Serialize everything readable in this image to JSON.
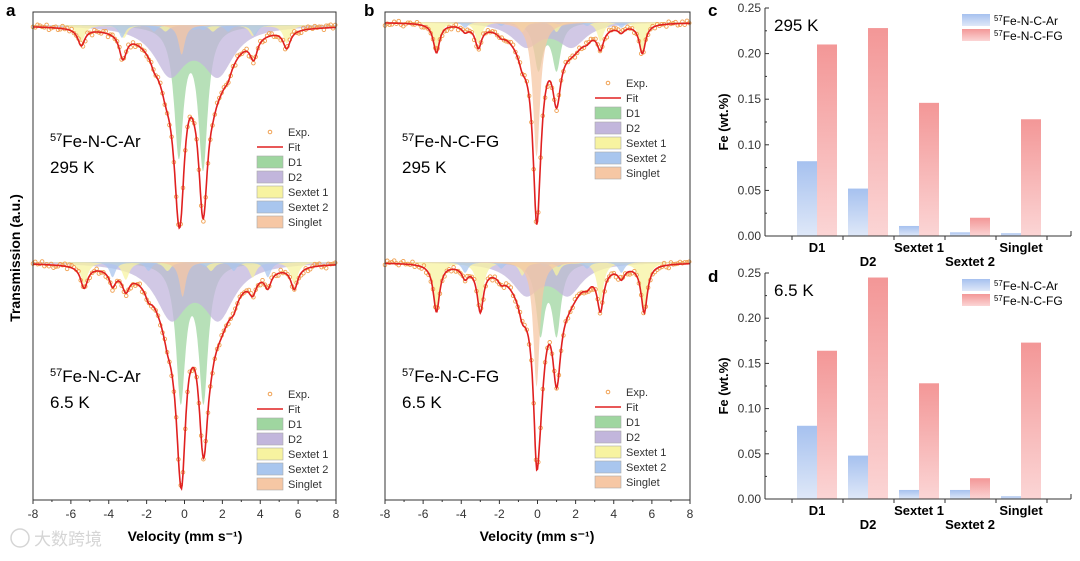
{
  "panel_letters": {
    "a": "a",
    "b": "b",
    "c": "c",
    "d": "d"
  },
  "watermark": "大数跨境",
  "colors": {
    "fit": "#e02020",
    "exp": "#f0a050",
    "D1": "#9fd6a0",
    "D2": "#c2b6dc",
    "Sextet 1": "#f7f3a0",
    "Sextet 2": "#a9c6ee",
    "Singlet": "#f6c7a4",
    "ar_top": "#a6c1ef",
    "ar_bottom": "#dfe8f8",
    "fg_top": "#f39797",
    "fg_bottom": "#fbd5d5"
  },
  "chart_data": [
    {
      "type": "line",
      "panel": "a",
      "xlabel": "Velocity (mm s⁻¹)",
      "ylabel": "Transmission (a.u.)",
      "xlim": [
        -8,
        8
      ],
      "xticks": [
        "-8",
        "-6",
        "-4",
        "-2",
        "0",
        "2",
        "4",
        "6",
        "8"
      ],
      "legend": [
        "Exp.",
        "Fit",
        "D1",
        "D2",
        "Sextet 1",
        "Sextet 2",
        "Singlet"
      ],
      "spectra": [
        {
          "sample_sup": "57",
          "sample": "Fe-N-C-Ar",
          "temp": "295 K",
          "components": [
            {
              "name": "D1",
              "width": 0.6,
              "lines": [
                [
                  -0.3,
                  0.6
                ],
                [
                  0.98,
                  0.66
                ]
              ]
            },
            {
              "name": "D2",
              "width": 2.0,
              "lines": [
                [
                  -0.77,
                  0.22
                ],
                [
                  1.77,
                  0.22
                ]
              ]
            },
            {
              "name": "Sextet 1",
              "width": 0.45,
              "lines": [
                [
                  -5.45,
                  0.08
                ],
                [
                  -3.2,
                  0.06
                ],
                [
                  -1.0,
                  0.03
                ],
                [
                  1.5,
                  0.03
                ],
                [
                  3.6,
                  0.05
                ],
                [
                  5.4,
                  0.085
                ]
              ]
            },
            {
              "name": "Sextet 2",
              "width": 0.4,
              "lines": [
                [
                  -3.3,
                  0.06
                ],
                [
                  -1.6,
                  0.03
                ],
                [
                  0.5,
                  0.02
                ],
                [
                  1.0,
                  0.02
                ],
                [
                  2.3,
                  0.03
                ],
                [
                  3.7,
                  0.05
                ]
              ]
            },
            {
              "name": "Singlet",
              "width": 0.4,
              "lines": [
                [
                  -0.15,
                  0.14
                ]
              ]
            }
          ]
        },
        {
          "sample_sup": "57",
          "sample": "Fe-N-C-Ar",
          "temp": "6.5 K",
          "components": [
            {
              "name": "D1",
              "width": 0.6,
              "lines": [
                [
                  -0.2,
                  0.62
                ],
                [
                  1.0,
                  0.62
                ]
              ]
            },
            {
              "name": "D2",
              "width": 2.0,
              "lines": [
                [
                  -0.7,
                  0.24
                ],
                [
                  1.8,
                  0.24
                ]
              ]
            },
            {
              "name": "Sextet 1",
              "width": 0.45,
              "lines": [
                [
                  -5.3,
                  0.1
                ],
                [
                  -3.1,
                  0.08
                ],
                [
                  -0.9,
                  0.04
                ],
                [
                  1.4,
                  0.04
                ],
                [
                  3.6,
                  0.07
                ],
                [
                  5.8,
                  0.1
                ]
              ]
            },
            {
              "name": "Sextet 2",
              "width": 0.4,
              "lines": [
                [
                  -3.8,
                  0.07
                ],
                [
                  -1.9,
                  0.04
                ],
                [
                  0.4,
                  0.02
                ],
                [
                  1.1,
                  0.02
                ],
                [
                  2.6,
                  0.04
                ],
                [
                  4.4,
                  0.07
                ]
              ]
            },
            {
              "name": "Singlet",
              "width": 0.4,
              "lines": [
                [
                  -0.1,
                  0.16
                ]
              ]
            }
          ]
        }
      ]
    },
    {
      "type": "line",
      "panel": "b",
      "xlabel": "Velocity (mm s⁻¹)",
      "xlim": [
        -8,
        8
      ],
      "xticks": [
        "-8",
        "-6",
        "-4",
        "-2",
        "0",
        "2",
        "4",
        "6",
        "8"
      ],
      "legend": [
        "Exp.",
        "Fit",
        "D1",
        "D2",
        "Sextet 1",
        "Sextet 2",
        "Singlet"
      ],
      "spectra": [
        {
          "sample_sup": "57",
          "sample": "Fe-N-C-FG",
          "temp": "295 K",
          "components": [
            {
              "name": "D1",
              "width": 0.55,
              "lines": [
                [
                  0.05,
                  0.24
                ],
                [
                  1.0,
                  0.24
                ]
              ]
            },
            {
              "name": "D2",
              "width": 1.8,
              "lines": [
                [
                  -0.6,
                  0.12
                ],
                [
                  1.8,
                  0.12
                ]
              ]
            },
            {
              "name": "Sextet 1",
              "width": 0.4,
              "lines": [
                [
                  -5.3,
                  0.15
                ],
                [
                  -3.1,
                  0.11
                ],
                [
                  -0.8,
                  0.05
                ],
                [
                  1.0,
                  0.05
                ],
                [
                  3.3,
                  0.1
                ],
                [
                  5.5,
                  0.15
                ]
              ]
            },
            {
              "name": "Sextet 2",
              "width": 0.4,
              "lines": [
                [
                  -3.8,
                  0.03
                ],
                [
                  -1.9,
                  0.02
                ],
                [
                  0.4,
                  0.01
                ],
                [
                  1.1,
                  0.01
                ],
                [
                  2.6,
                  0.02
                ],
                [
                  4.4,
                  0.03
                ]
              ]
            },
            {
              "name": "Singlet",
              "width": 0.45,
              "lines": [
                [
                  -0.05,
                  0.7
                ]
              ]
            }
          ]
        },
        {
          "sample_sup": "57",
          "sample": "Fe-N-C-FG",
          "temp": "6.5 K",
          "components": [
            {
              "name": "D1",
              "width": 0.55,
              "lines": [
                [
                  0.15,
                  0.32
                ],
                [
                  1.0,
                  0.32
                ]
              ]
            },
            {
              "name": "D2",
              "width": 1.8,
              "lines": [
                [
                  -0.6,
                  0.14
                ],
                [
                  1.6,
                  0.14
                ]
              ]
            },
            {
              "name": "Sextet 1",
              "width": 0.4,
              "lines": [
                [
                  -5.3,
                  0.22
                ],
                [
                  -3.0,
                  0.2
                ],
                [
                  -0.8,
                  0.06
                ],
                [
                  1.0,
                  0.06
                ],
                [
                  3.3,
                  0.18
                ],
                [
                  5.6,
                  0.22
                ]
              ]
            },
            {
              "name": "Sextet 2",
              "width": 0.4,
              "lines": [
                [
                  -3.8,
                  0.05
                ],
                [
                  -1.9,
                  0.03
                ],
                [
                  0.4,
                  0.02
                ],
                [
                  1.1,
                  0.02
                ],
                [
                  2.6,
                  0.03
                ],
                [
                  4.4,
                  0.05
                ]
              ]
            },
            {
              "name": "Singlet",
              "width": 0.4,
              "lines": [
                [
                  -0.05,
                  0.58
                ]
              ]
            }
          ]
        }
      ]
    },
    {
      "type": "bar",
      "panel": "c",
      "annotation": "295 K",
      "ylabel": "Fe (wt.%)",
      "ylim": [
        0,
        0.25
      ],
      "yticks": [
        "0.00",
        "0.05",
        "0.10",
        "0.15",
        "0.20",
        "0.25"
      ],
      "categories": [
        "D1",
        "D2",
        "Sextet 1",
        "Sextet 2",
        "Singlet"
      ],
      "legend_position": "top-right",
      "series": [
        {
          "sup": "57",
          "name": "Fe-N-C-Ar",
          "values": [
            0.082,
            0.052,
            0.011,
            0.004,
            0.003
          ]
        },
        {
          "sup": "57",
          "name": "Fe-N-C-FG",
          "values": [
            0.21,
            0.228,
            0.146,
            0.02,
            0.128
          ]
        }
      ]
    },
    {
      "type": "bar",
      "panel": "d",
      "annotation": "6.5 K",
      "ylabel": "Fe (wt.%)",
      "ylim": [
        0,
        0.25
      ],
      "yticks": [
        "0.00",
        "0.05",
        "0.10",
        "0.15",
        "0.20",
        "0.25"
      ],
      "categories": [
        "D1",
        "D2",
        "Sextet 1",
        "Sextet 2",
        "Singlet"
      ],
      "legend_position": "top-right",
      "series": [
        {
          "sup": "57",
          "name": "Fe-N-C-Ar",
          "values": [
            0.081,
            0.048,
            0.01,
            0.01,
            0.003
          ]
        },
        {
          "sup": "57",
          "name": "Fe-N-C-FG",
          "values": [
            0.164,
            0.245,
            0.128,
            0.023,
            0.173
          ]
        }
      ]
    }
  ]
}
